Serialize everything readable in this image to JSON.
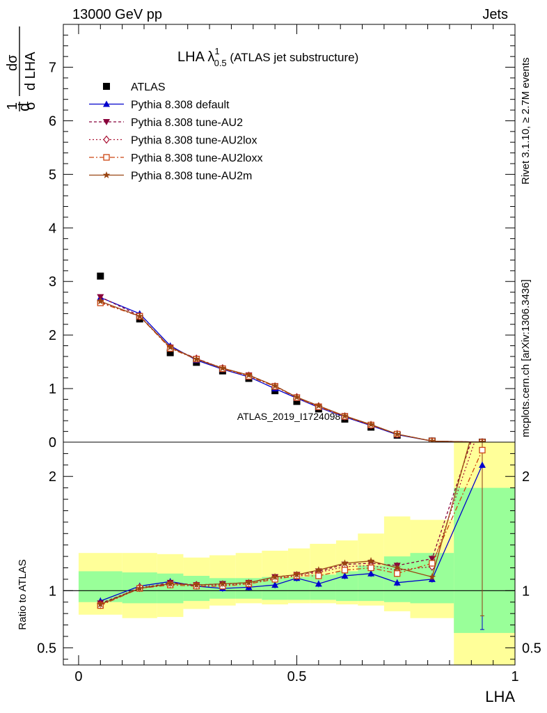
{
  "header": {
    "left": "13000 GeV pp",
    "right": "Jets"
  },
  "side_labels": {
    "rivet": "Rivet 3.1.10, ≥ 2.7M events",
    "mcplots": "mcplots.cern.ch [arXiv:1306.3436]"
  },
  "watermark": "ATLAS_2019_I1724098",
  "chart_data": [
    {
      "panel": "main",
      "type": "line",
      "title": "LHA λ",
      "title_sup": "1",
      "title_sub": "0.5",
      "title_suffix": " (ATLAS jet substructure)",
      "ylabel": "1/σ dσ/d LHA",
      "xlim": [
        -0.035,
        1.0
      ],
      "ylim": [
        0,
        7.8
      ],
      "y_ticks": [
        0,
        1,
        2,
        3,
        4,
        5,
        6,
        7
      ],
      "y_tick_labels": [
        "0",
        "1",
        "2",
        "3",
        "4",
        "5",
        "6",
        "7"
      ],
      "legend_position": "top-left",
      "x": [
        0.05,
        0.14,
        0.21,
        0.27,
        0.33,
        0.39,
        0.45,
        0.5,
        0.55,
        0.61,
        0.67,
        0.73,
        0.81,
        0.925
      ],
      "series": [
        {
          "name": "ATLAS",
          "color": "#000000",
          "marker": "square",
          "line": "none",
          "values": [
            3.1,
            2.3,
            1.67,
            1.49,
            1.33,
            1.19,
            0.96,
            0.76,
            0.62,
            0.43,
            0.28,
            0.13,
            0.02,
            0.0
          ]
        },
        {
          "name": "Pythia 8.308 default",
          "color": "#0000cc",
          "marker": "triangle-up",
          "dash": "",
          "values": [
            2.7,
            2.4,
            1.8,
            1.53,
            1.36,
            1.22,
            1.0,
            0.82,
            0.65,
            0.47,
            0.31,
            0.14,
            0.02,
            0.0
          ]
        },
        {
          "name": "Pythia 8.308 tune-AU2",
          "color": "#88003a",
          "marker": "triangle-down",
          "dash": "4,3",
          "values": [
            2.71,
            2.36,
            1.77,
            1.56,
            1.38,
            1.25,
            1.05,
            0.84,
            0.67,
            0.49,
            0.32,
            0.15,
            0.02,
            0.0
          ]
        },
        {
          "name": "Pythia 8.308 tune-AU2lox",
          "color": "#aa1133",
          "marker": "diamond-open",
          "dash": "2,3",
          "values": [
            2.62,
            2.35,
            1.76,
            1.56,
            1.38,
            1.24,
            1.04,
            0.84,
            0.67,
            0.48,
            0.32,
            0.15,
            0.02,
            0.0
          ]
        },
        {
          "name": "Pythia 8.308 tune-AU2loxx",
          "color": "#cc4411",
          "marker": "square-open",
          "dash": "7,3,2,3",
          "values": [
            2.6,
            2.35,
            1.75,
            1.55,
            1.37,
            1.23,
            1.04,
            0.83,
            0.66,
            0.48,
            0.32,
            0.15,
            0.02,
            0.0
          ]
        },
        {
          "name": "Pythia 8.308 tune-AU2m",
          "color": "#994411",
          "marker": "star",
          "dash": "",
          "values": [
            2.63,
            2.35,
            1.77,
            1.55,
            1.38,
            1.25,
            1.05,
            0.84,
            0.68,
            0.49,
            0.33,
            0.15,
            0.02,
            0.0
          ]
        }
      ]
    },
    {
      "panel": "ratio",
      "type": "line",
      "ylabel": "Ratio to ATLAS",
      "xlabel": "LHA",
      "xlim": [
        -0.035,
        1.0
      ],
      "ylim": [
        0.35,
        2.3
      ],
      "x_ticks": [
        0,
        0.5,
        1
      ],
      "x_tick_labels": [
        "0",
        "0.5",
        "1"
      ],
      "y_ticks": [
        0.5,
        1,
        2
      ],
      "y_tick_labels": [
        "0.5",
        "1",
        "2"
      ],
      "reference_line": 1,
      "bins": [
        {
          "lo": 0.0,
          "hi": 0.1,
          "inner": [
            0.9,
            1.17
          ],
          "outer": [
            0.79,
            1.33
          ]
        },
        {
          "lo": 0.1,
          "hi": 0.18,
          "inner": [
            0.89,
            1.16
          ],
          "outer": [
            0.76,
            1.33
          ]
        },
        {
          "lo": 0.18,
          "hi": 0.24,
          "inner": [
            0.89,
            1.15
          ],
          "outer": [
            0.77,
            1.32
          ]
        },
        {
          "lo": 0.24,
          "hi": 0.3,
          "inner": [
            0.91,
            1.13
          ],
          "outer": [
            0.84,
            1.29
          ]
        },
        {
          "lo": 0.3,
          "hi": 0.36,
          "inner": [
            0.93,
            1.11
          ],
          "outer": [
            0.87,
            1.31
          ]
        },
        {
          "lo": 0.36,
          "hi": 0.42,
          "inner": [
            0.93,
            1.11
          ],
          "outer": [
            0.89,
            1.33
          ]
        },
        {
          "lo": 0.42,
          "hi": 0.48,
          "inner": [
            0.92,
            1.12
          ],
          "outer": [
            0.88,
            1.35
          ]
        },
        {
          "lo": 0.48,
          "hi": 0.53,
          "inner": [
            0.92,
            1.12
          ],
          "outer": [
            0.89,
            1.37
          ]
        },
        {
          "lo": 0.53,
          "hi": 0.59,
          "inner": [
            0.92,
            1.14
          ],
          "outer": [
            0.89,
            1.41
          ]
        },
        {
          "lo": 0.59,
          "hi": 0.64,
          "inner": [
            0.91,
            1.17
          ],
          "outer": [
            0.88,
            1.44
          ]
        },
        {
          "lo": 0.64,
          "hi": 0.7,
          "inner": [
            0.91,
            1.22
          ],
          "outer": [
            0.87,
            1.5
          ]
        },
        {
          "lo": 0.7,
          "hi": 0.76,
          "inner": [
            0.9,
            1.3
          ],
          "outer": [
            0.82,
            1.65
          ]
        },
        {
          "lo": 0.76,
          "hi": 0.86,
          "inner": [
            0.89,
            1.33
          ],
          "outer": [
            0.76,
            1.62
          ]
        },
        {
          "lo": 0.86,
          "hi": 1.0,
          "inner": [
            0.63,
            1.9
          ],
          "outer": [
            0.35,
            2.3
          ]
        }
      ],
      "series": [
        {
          "name": "Pythia 8.308 default",
          "color": "#0000cc",
          "marker": "triangle-up",
          "dash": "",
          "values": [
            0.91,
            1.04,
            1.08,
            1.04,
            1.02,
            1.03,
            1.05,
            1.11,
            1.06,
            1.13,
            1.15,
            1.07,
            1.1,
            2.1
          ]
        },
        {
          "name": "Pythia 8.308 tune-AU2",
          "color": "#88003a",
          "marker": "triangle-down",
          "dash": "4,3",
          "values": [
            0.89,
            1.02,
            1.07,
            1.05,
            1.06,
            1.07,
            1.12,
            1.14,
            1.17,
            1.23,
            1.24,
            1.22,
            1.28,
            2.6
          ]
        },
        {
          "name": "Pythia 8.308 tune-AU2lox",
          "color": "#aa1133",
          "marker": "diamond-open",
          "dash": "2,3",
          "values": [
            0.88,
            1.03,
            1.06,
            1.05,
            1.05,
            1.06,
            1.11,
            1.13,
            1.16,
            1.21,
            1.22,
            1.18,
            1.21,
            2.5
          ]
        },
        {
          "name": "Pythia 8.308 tune-AU2loxx",
          "color": "#cc4411",
          "marker": "square-open",
          "dash": "7,3,2,3",
          "values": [
            0.87,
            1.02,
            1.05,
            1.04,
            1.04,
            1.06,
            1.1,
            1.13,
            1.13,
            1.18,
            1.2,
            1.15,
            1.24,
            2.23
          ]
        },
        {
          "name": "Pythia 8.308 tune-AU2m",
          "color": "#994411",
          "marker": "star",
          "dash": "",
          "values": [
            0.88,
            1.02,
            1.06,
            1.05,
            1.06,
            1.07,
            1.12,
            1.14,
            1.18,
            1.24,
            1.26,
            1.2,
            1.12,
            2.7
          ]
        }
      ],
      "error_bars": [
        {
          "series": "Pythia 8.308 default",
          "x": 0.925,
          "lo": 0.66,
          "hi": 2.3
        },
        {
          "series": "Pythia 8.308 tune-AU2m",
          "x": 0.925,
          "lo": 0.78,
          "hi": 2.3
        }
      ]
    }
  ]
}
